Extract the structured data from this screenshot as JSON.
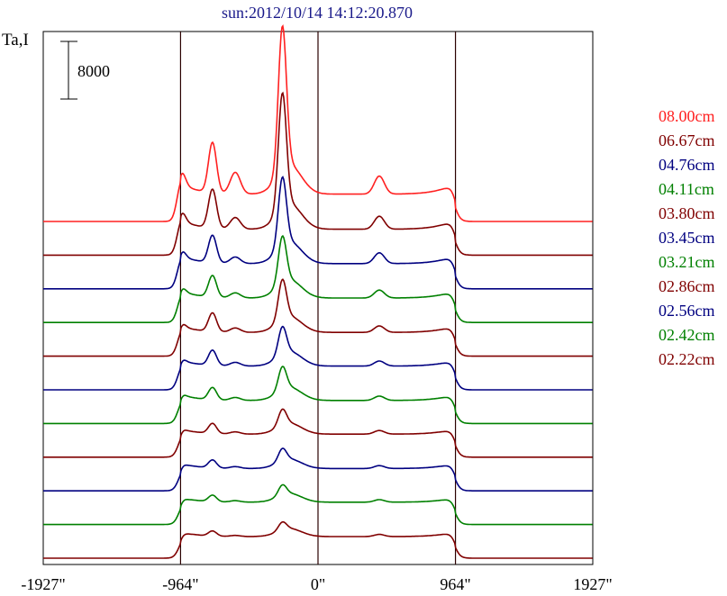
{
  "chart_data": {
    "type": "line",
    "title": "sun:2012/10/14 14:12:20.870",
    "ylabel": "Ta,I",
    "scale_bar_label": "8000",
    "scale_bar_value": 8000,
    "xlim": [
      -1927,
      1927
    ],
    "x_ticks": [
      {
        "value": -1927,
        "label": "-1927\""
      },
      {
        "value": -964,
        "label": "-964\""
      },
      {
        "value": 0,
        "label": "0\""
      },
      {
        "value": 964,
        "label": "964\""
      },
      {
        "value": 1927,
        "label": "1927\""
      }
    ],
    "vertical_lines": [
      -964,
      0,
      964
    ],
    "grid": false,
    "legend_position": "right",
    "series": [
      {
        "name": "08.00cm",
        "color": "#ff2020",
        "baseline": 0,
        "profile": {
          "disk": 3800,
          "limb": 1600,
          "sources": [
            [
              -964,
              3500,
              40
            ],
            [
              -740,
              7000,
              40
            ],
            [
              -580,
              3000,
              50
            ],
            [
              -250,
              20000,
              40
            ],
            [
              -200,
              4000,
              120
            ],
            [
              430,
              2500,
              50
            ]
          ]
        }
      },
      {
        "name": "06.67cm",
        "color": "#800000",
        "baseline": 0,
        "profile": {
          "disk": 3600,
          "limb": 1400,
          "sources": [
            [
              -964,
              2800,
              40
            ],
            [
              -740,
              5400,
              40
            ],
            [
              -580,
              1600,
              50
            ],
            [
              -250,
              16000,
              40
            ],
            [
              -200,
              3500,
              120
            ],
            [
              430,
              1800,
              50
            ]
          ]
        }
      },
      {
        "name": "04.76cm",
        "color": "#000080",
        "baseline": 0,
        "profile": {
          "disk": 3500,
          "limb": 1200,
          "sources": [
            [
              -964,
              2200,
              40
            ],
            [
              -740,
              3800,
              40
            ],
            [
              -580,
              900,
              50
            ],
            [
              -250,
              9500,
              40
            ],
            [
              -200,
              3000,
              120
            ],
            [
              430,
              1500,
              50
            ]
          ]
        }
      },
      {
        "name": "04.11cm",
        "color": "#008000",
        "baseline": 0,
        "profile": {
          "disk": 3400,
          "limb": 1100,
          "sources": [
            [
              -964,
              1800,
              40
            ],
            [
              -740,
              3000,
              40
            ],
            [
              -580,
              700,
              50
            ],
            [
              -250,
              6500,
              40
            ],
            [
              -200,
              2500,
              120
            ],
            [
              430,
              1100,
              50
            ]
          ]
        }
      },
      {
        "name": "03.80cm",
        "color": "#800000",
        "baseline": 0,
        "profile": {
          "disk": 3300,
          "limb": 1000,
          "sources": [
            [
              -964,
              1600,
              40
            ],
            [
              -740,
              2600,
              40
            ],
            [
              -580,
              600,
              50
            ],
            [
              -250,
              5500,
              40
            ],
            [
              -200,
              2200,
              120
            ],
            [
              430,
              900,
              50
            ]
          ]
        }
      },
      {
        "name": "03.45cm",
        "color": "#000080",
        "baseline": 0,
        "profile": {
          "disk": 3300,
          "limb": 900,
          "sources": [
            [
              -964,
              1300,
              40
            ],
            [
              -740,
              2100,
              40
            ],
            [
              -580,
              500,
              50
            ],
            [
              -250,
              3800,
              40
            ],
            [
              -200,
              2000,
              120
            ],
            [
              430,
              700,
              50
            ]
          ]
        }
      },
      {
        "name": "03.21cm",
        "color": "#008000",
        "baseline": 0,
        "profile": {
          "disk": 3200,
          "limb": 900,
          "sources": [
            [
              -964,
              1100,
              40
            ],
            [
              -740,
              1700,
              40
            ],
            [
              -580,
              400,
              50
            ],
            [
              -250,
              3200,
              40
            ],
            [
              -200,
              1800,
              120
            ],
            [
              430,
              600,
              50
            ]
          ]
        }
      },
      {
        "name": "02.86cm",
        "color": "#800000",
        "baseline": 0,
        "profile": {
          "disk": 3200,
          "limb": 800,
          "sources": [
            [
              -964,
              900,
              40
            ],
            [
              -740,
              1400,
              40
            ],
            [
              -580,
              300,
              50
            ],
            [
              -250,
              2200,
              40
            ],
            [
              -200,
              1500,
              120
            ],
            [
              430,
              500,
              50
            ]
          ]
        }
      },
      {
        "name": "02.56cm",
        "color": "#000080",
        "baseline": 0,
        "profile": {
          "disk": 3100,
          "limb": 800,
          "sources": [
            [
              -964,
              700,
              40
            ],
            [
              -740,
              1100,
              40
            ],
            [
              -580,
              250,
              50
            ],
            [
              -250,
              1700,
              40
            ],
            [
              -200,
              1300,
              120
            ],
            [
              430,
              400,
              50
            ]
          ]
        }
      },
      {
        "name": "02.42cm",
        "color": "#008000",
        "baseline": 0,
        "profile": {
          "disk": 3100,
          "limb": 700,
          "sources": [
            [
              -964,
              600,
              40
            ],
            [
              -740,
              900,
              40
            ],
            [
              -580,
              200,
              50
            ],
            [
              -250,
              1400,
              40
            ],
            [
              -200,
              1200,
              120
            ],
            [
              430,
              350,
              50
            ]
          ]
        }
      },
      {
        "name": "02.22cm",
        "color": "#800000",
        "baseline": 0,
        "profile": {
          "disk": 3000,
          "limb": 700,
          "sources": [
            [
              -964,
              500,
              40
            ],
            [
              -740,
              700,
              40
            ],
            [
              -580,
              150,
              50
            ],
            [
              -250,
              1100,
              40
            ],
            [
              -200,
              1100,
              120
            ],
            [
              430,
              300,
              50
            ]
          ]
        }
      }
    ]
  }
}
